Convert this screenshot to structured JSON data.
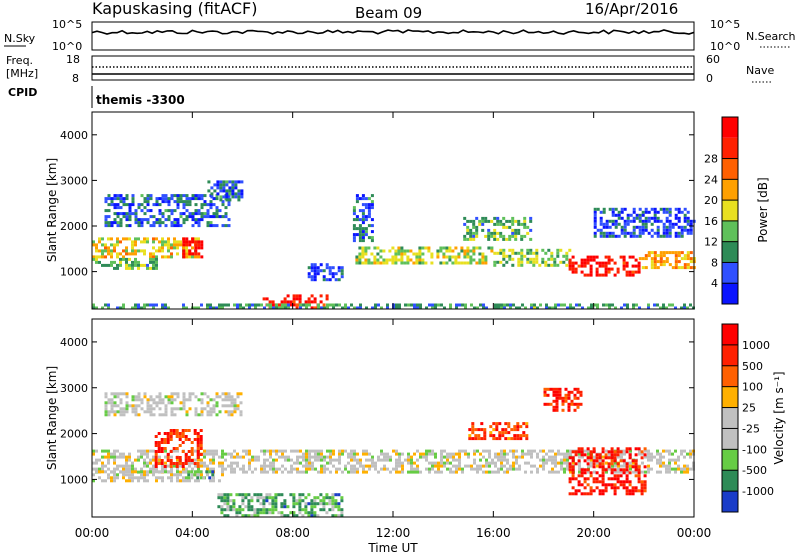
{
  "header": {
    "station": "Kapuskasing (fitACF)",
    "beam": "Beam 09",
    "date": "16/Apr/2016"
  },
  "noise_panel": {
    "left_label": "N.Sky",
    "right_label": "N.Search",
    "left_ticks": [
      "10^5",
      "10^0"
    ],
    "right_ticks": [
      "10^5",
      "10^0"
    ]
  },
  "freq_panel": {
    "left_label_1": "Freq.",
    "left_label_2": "[MHz]",
    "right_label": "Nave",
    "left_ticks": [
      "18",
      "8"
    ],
    "right_ticks": [
      "60",
      "0"
    ]
  },
  "cpid_panel": {
    "label": "CPID",
    "text": "themis -3300"
  },
  "chart_data": [
    {
      "type": "heatmap",
      "name": "power",
      "ylabel": "Slant Range [km]",
      "yticks": [
        "1000",
        "2000",
        "3000",
        "4000"
      ],
      "ylim": [
        180,
        4500
      ],
      "xlim_hours": [
        0,
        24
      ],
      "colorbar_label": "Power [dB]",
      "colorbar_ticks": [
        "4",
        "8",
        "12",
        "16",
        "20",
        "24",
        "28"
      ],
      "colorbar_colors": [
        "#0a14ff",
        "#3050ff",
        "#2e8b57",
        "#5fc05a",
        "#e8e020",
        "#ffa000",
        "#ff6000",
        "#ff2000",
        "#ff0000"
      ],
      "regions": [
        {
          "t0": 0.0,
          "t1": 4.2,
          "r0": 1350,
          "r1": 1750,
          "v": 0.55
        },
        {
          "t0": 3.6,
          "t1": 4.4,
          "r0": 1350,
          "r1": 1750,
          "v": 0.95
        },
        {
          "t0": 0.0,
          "t1": 2.6,
          "r0": 1100,
          "r1": 1300,
          "v": 0.35
        },
        {
          "t0": 0.5,
          "t1": 5.5,
          "r0": 2000,
          "r1": 2700,
          "v": 0.2
        },
        {
          "t0": 4.6,
          "t1": 6.0,
          "r0": 2600,
          "r1": 3000,
          "v": 0.2
        },
        {
          "t0": 6.8,
          "t1": 9.4,
          "r0": 200,
          "r1": 500,
          "v": 0.9
        },
        {
          "t0": 8.6,
          "t1": 10.0,
          "r0": 850,
          "r1": 1250,
          "v": 0.15
        },
        {
          "t0": 10.5,
          "t1": 16.0,
          "r0": 1200,
          "r1": 1550,
          "v": 0.45
        },
        {
          "t0": 16.0,
          "t1": 19.0,
          "r0": 1150,
          "r1": 1500,
          "v": 0.4
        },
        {
          "t0": 19.0,
          "t1": 21.8,
          "r0": 900,
          "r1": 1350,
          "v": 0.9
        },
        {
          "t0": 21.8,
          "t1": 24.0,
          "r0": 1100,
          "r1": 1450,
          "v": 0.6
        },
        {
          "t0": 10.4,
          "t1": 11.2,
          "r0": 1700,
          "r1": 2700,
          "v": 0.2
        },
        {
          "t0": 14.8,
          "t1": 17.5,
          "r0": 1700,
          "r1": 2200,
          "v": 0.35
        },
        {
          "t0": 20.0,
          "t1": 24.0,
          "r0": 1800,
          "r1": 2400,
          "v": 0.15
        },
        {
          "t0": 0.0,
          "t1": 24.0,
          "r0": 180,
          "r1": 300,
          "v": 0.3
        }
      ]
    },
    {
      "type": "heatmap",
      "name": "velocity",
      "ylabel": "Slant Range [km]",
      "yticks": [
        "1000",
        "2000",
        "3000",
        "4000"
      ],
      "ylim": [
        180,
        4500
      ],
      "xlim_hours": [
        0,
        24
      ],
      "xticks": [
        "00:00",
        "04:00",
        "08:00",
        "12:00",
        "16:00",
        "20:00",
        "00:00"
      ],
      "xlabel": "Time UT",
      "colorbar_label": "Velocity [m s⁻¹]",
      "colorbar_ticks": [
        "1000",
        "500",
        "100",
        "25",
        "-25",
        "-100",
        "-500",
        "-1000"
      ],
      "colorbar_colors": [
        "#1a3cc8",
        "#2e8b57",
        "#66cc44",
        "#c0c0c0",
        "#c0c0c0",
        "#ffb000",
        "#ff6000",
        "#ff2000",
        "#ff0000"
      ],
      "regions": [
        {
          "t0": 0.0,
          "t1": 24.0,
          "r0": 1150,
          "r1": 1650,
          "v": 0.45
        },
        {
          "t0": 0.5,
          "t1": 6.0,
          "r0": 2400,
          "r1": 2900,
          "v": 0.45
        },
        {
          "t0": 2.5,
          "t1": 4.3,
          "r0": 1300,
          "r1": 2100,
          "v": 0.85
        },
        {
          "t0": 0.0,
          "t1": 5.2,
          "r0": 950,
          "r1": 1200,
          "v": 0.45
        },
        {
          "t0": 3.8,
          "t1": 4.8,
          "r0": 1050,
          "r1": 1200,
          "v": 0.25
        },
        {
          "t0": 5.0,
          "t1": 10.0,
          "r0": 200,
          "r1": 700,
          "v": 0.25
        },
        {
          "t0": 19.0,
          "t1": 22.0,
          "r0": 700,
          "r1": 1700,
          "v": 0.9
        },
        {
          "t0": 15.0,
          "t1": 17.3,
          "r0": 1900,
          "r1": 2250,
          "v": 0.8
        },
        {
          "t0": 18.0,
          "t1": 19.5,
          "r0": 2500,
          "r1": 3000,
          "v": 0.85
        }
      ]
    }
  ]
}
